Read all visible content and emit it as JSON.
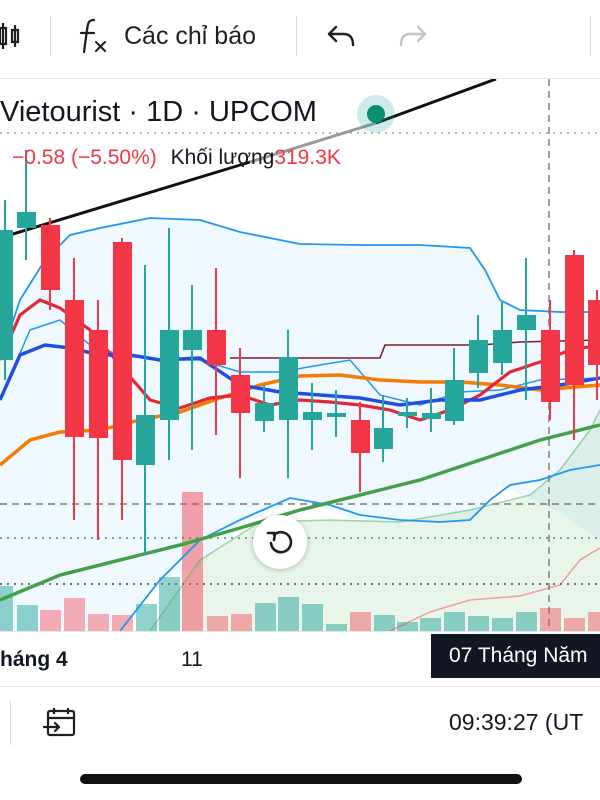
{
  "toolbar": {
    "indicators_label": "Các chỉ báo"
  },
  "legend": {
    "symbol": "Vietourist · 1D · UPCOM",
    "change": "−0.58 (−5.50%)",
    "volume_label": "Khối lượng",
    "volume_value": "319.3K"
  },
  "time_axis": {
    "label_month": "háng 4",
    "label_day": "11",
    "crosshair_date": "07 Tháng Năm"
  },
  "footer": {
    "time": "09:39:27 (UT"
  },
  "colors": {
    "up": "#26a69a",
    "down": "#f23645",
    "bb": "#2196f3",
    "ma_blue": "#1e4fe0",
    "ma_red": "#e32636",
    "ma_orange": "#f57c00",
    "ma_green": "#43a047",
    "ma_dark": "#7b1f2a"
  },
  "icons": [
    "candle-type-icon",
    "fx-indicators-icon",
    "undo-icon",
    "redo-icon",
    "drawing-point-icon",
    "reset-chart-icon",
    "date-range-icon"
  ]
}
